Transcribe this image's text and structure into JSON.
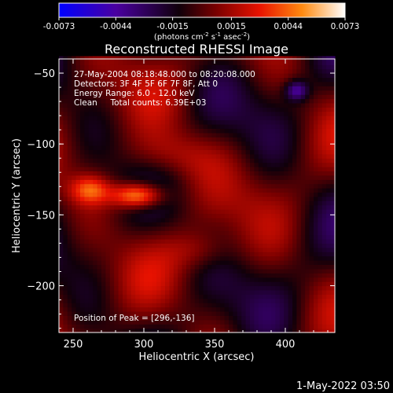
{
  "chart_data": {
    "type": "heatmap",
    "title": "Reconstructed RHESSI Image",
    "xlabel": "Heliocentric X (arcsec)",
    "ylabel": "Heliocentric Y (arcsec)",
    "xlim": [
      240,
      435
    ],
    "ylim": [
      -233,
      -40
    ],
    "xticks": [
      250,
      300,
      350,
      400
    ],
    "yticks": [
      -50,
      -100,
      -150,
      -200
    ],
    "colorbar": {
      "range": [
        -0.0073,
        0.0073
      ],
      "tick_values": [
        -0.0073,
        -0.0044,
        -0.0015,
        0.0015,
        0.0044,
        0.0073
      ],
      "tick_labels": [
        "-0.0073",
        "-0.0044",
        "-0.0015",
        "0.0015",
        "0.0044",
        "0.0073"
      ],
      "unit_base": "(photons cm",
      "unit_sup1": "-2",
      "unit_mid": " s",
      "unit_sup2": "-1",
      "unit_tail": " asec",
      "unit_sup3": "-2",
      "unit_end": ")"
    },
    "annotations": [
      "27-May-2004 08:18:48.000 to 08:20:08.000",
      "Detectors: 3F 4F 5F 6F 7F 8F, Att 0",
      "Energy Range: 6.0 - 12.0 keV",
      "Clean     Total counts: 6.39E+03"
    ],
    "peak_label": "Position of Peak = [296,-136]",
    "peak": [
      296,
      -136
    ],
    "grid": false,
    "colors": {
      "low": "#0000ff",
      "mid": "#000000",
      "high": "#ffffff",
      "accent_mid": "#ff3000"
    }
  },
  "footer": {
    "timestamp": "1-May-2022 03:50"
  }
}
